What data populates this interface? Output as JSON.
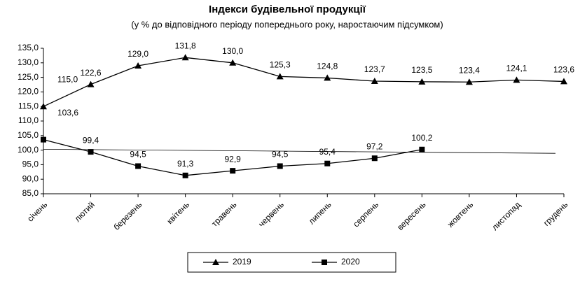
{
  "chart_data": {
    "type": "line",
    "title": "Індекси будівельної продукції",
    "subtitle": "(у % до відповідного періоду попереднього року, наростаючим підсумком)",
    "categories": [
      "січень",
      "лютий",
      "березень",
      "квітень",
      "травень",
      "червень",
      "липень",
      "серпень",
      "вересень",
      "жовтень",
      "листопад",
      "грудень"
    ],
    "series": [
      {
        "name": "2019",
        "color": "#000000",
        "marker": "triangle",
        "values": [
          115.0,
          122.6,
          129.0,
          131.8,
          130.0,
          125.3,
          124.8,
          123.7,
          123.5,
          123.4,
          124.1,
          123.6
        ],
        "value_labels": [
          "115,0",
          "122,6",
          "129,0",
          "131,8",
          "130,0",
          "125,3",
          "124,8",
          "123,7",
          "123,5",
          "123,4",
          "124,1",
          "123,6"
        ]
      },
      {
        "name": "2020",
        "color": "#000000",
        "marker": "square",
        "values": [
          103.6,
          99.4,
          94.5,
          91.3,
          92.9,
          94.5,
          95.4,
          97.2,
          100.2,
          null,
          null,
          null
        ],
        "value_labels": [
          "103,6",
          "99,4",
          "94,5",
          "91,3",
          "92,9",
          "94,5",
          "95,4",
          "97,2",
          "100,2",
          null,
          null,
          null
        ]
      }
    ],
    "trend_line": [
      100.3,
      98.9
    ],
    "ylim": [
      85,
      135
    ],
    "yticks": [
      {
        "value": 85,
        "label": "85,0"
      },
      {
        "value": 90,
        "label": "90,0"
      },
      {
        "value": 95,
        "label": "95,0"
      },
      {
        "value": 100,
        "label": "100,0"
      },
      {
        "value": 105,
        "label": "105,0"
      },
      {
        "value": 110,
        "label": "110,0"
      },
      {
        "value": 115,
        "label": "115,0"
      },
      {
        "value": 120,
        "label": "120,0"
      },
      {
        "value": 125,
        "label": "125,0"
      },
      {
        "value": 130,
        "label": "130,0"
      },
      {
        "value": 135,
        "label": "135,0"
      }
    ],
    "legend": "bottom"
  }
}
